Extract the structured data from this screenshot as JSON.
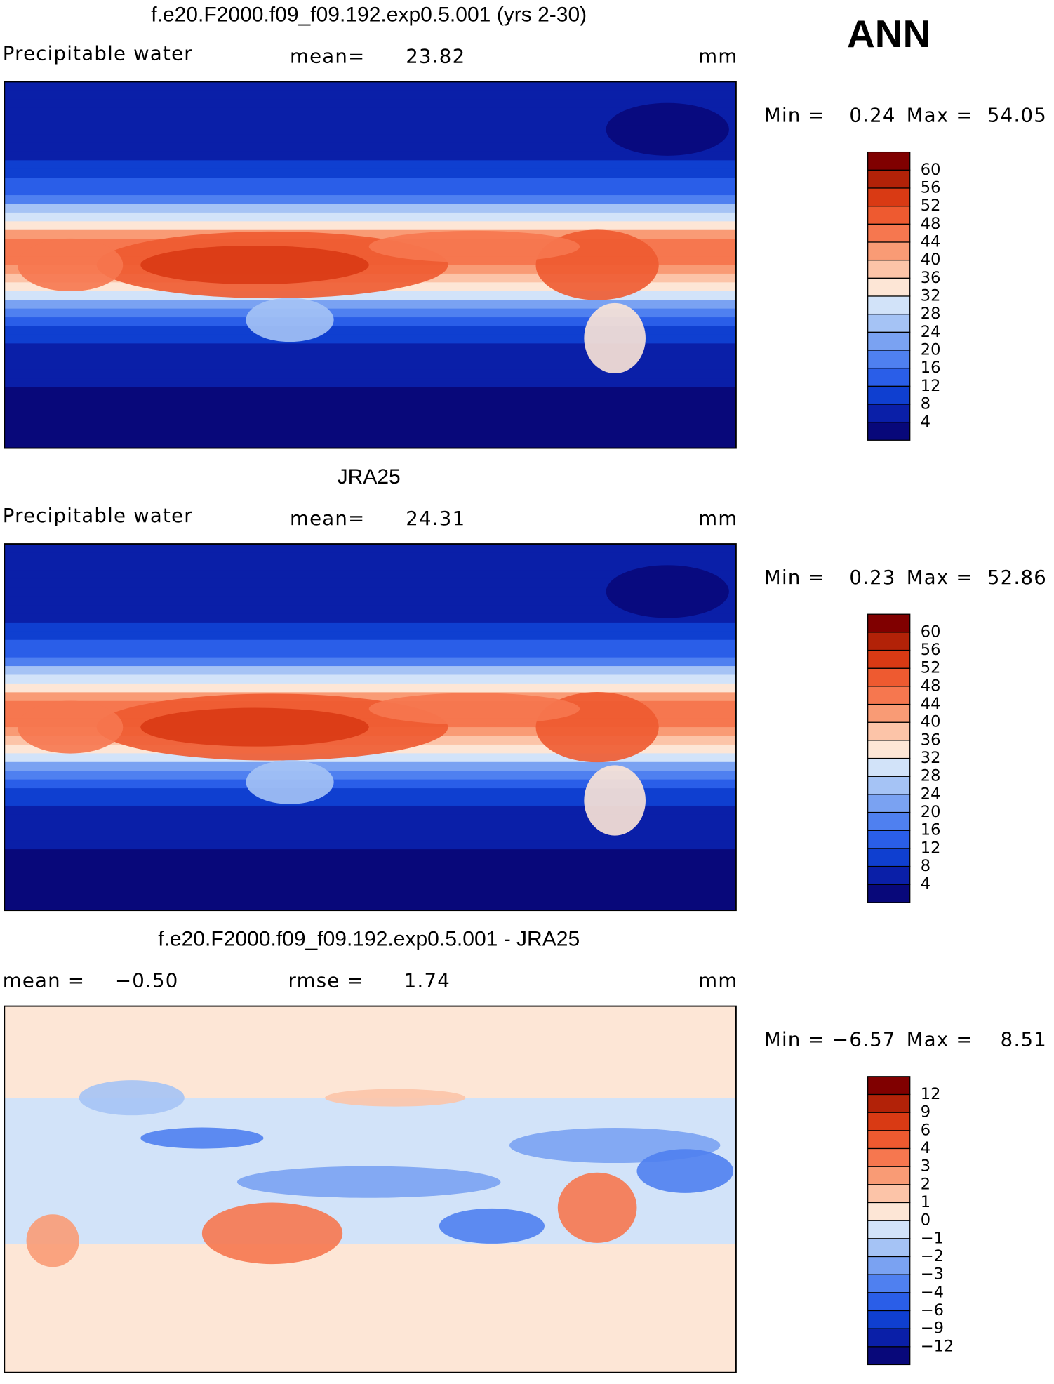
{
  "header": {
    "season": "ANN"
  },
  "palette": [
    "#08087a",
    "#0a1fa8",
    "#0f3fd0",
    "#2a5ee8",
    "#4f80f0",
    "#7aa2f2",
    "#a5c3f5",
    "#d2e3f9",
    "#fde6d6",
    "#fcc4a8",
    "#f99b75",
    "#f6774f",
    "#ee5a30",
    "#d93a14",
    "#b22208",
    "#800000"
  ],
  "panels": [
    {
      "title": "f.e20.F2000.f09_f09.192.exp0.5.001 (yrs 2-30)",
      "left": [
        "Precipitable water"
      ],
      "middle": [
        "mean=",
        "23.82"
      ],
      "units": "mm",
      "min_label": "Min =",
      "min_value": "0.24",
      "max_label": "Max =",
      "max_value": "54.05",
      "levels": [
        "4",
        "8",
        "12",
        "16",
        "20",
        "24",
        "28",
        "32",
        "36",
        "40",
        "44",
        "48",
        "52",
        "56",
        "60"
      ],
      "field": "absolute"
    },
    {
      "title": "JRA25",
      "left": [
        "Precipitable water"
      ],
      "middle": [
        "mean=",
        "24.31"
      ],
      "units": "mm",
      "min_label": "Min =",
      "min_value": "0.23",
      "max_label": "Max =",
      "max_value": "52.86",
      "levels": [
        "4",
        "8",
        "12",
        "16",
        "20",
        "24",
        "28",
        "32",
        "36",
        "40",
        "44",
        "48",
        "52",
        "56",
        "60"
      ],
      "field": "absolute"
    },
    {
      "title": "f.e20.F2000.f09_f09.192.exp0.5.001 - JRA25",
      "left": [
        "mean =",
        "−0.50"
      ],
      "middle": [
        "rmse =",
        "1.74"
      ],
      "units": "mm",
      "min_label": "Min =",
      "min_value": "−6.57",
      "max_label": "Max =",
      "max_value": "8.51",
      "levels": [
        "−12",
        "−9",
        "−6",
        "−4",
        "−3",
        "−2",
        "−1",
        "0",
        "1",
        "2",
        "3",
        "4",
        "6",
        "9",
        "12"
      ],
      "field": "difference"
    }
  ]
}
